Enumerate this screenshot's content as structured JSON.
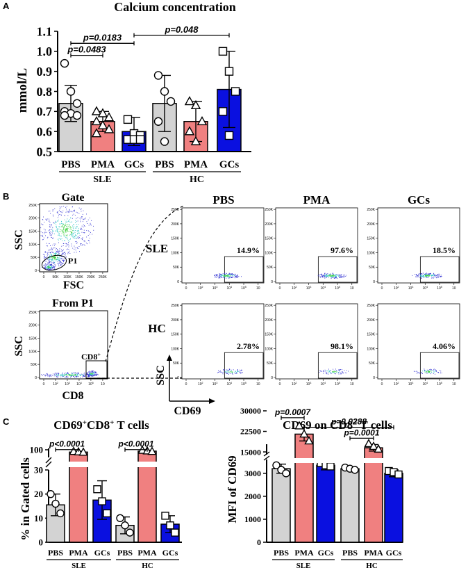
{
  "figure": {
    "panel_labels": [
      "A",
      "B",
      "C"
    ]
  },
  "colors": {
    "pbs": "#d3d3d3",
    "pma": "#f08080",
    "gcs": "#0a10e0",
    "stroke": "#000000",
    "density_low": "#2a2ad0",
    "density_mid": "#20c0c0",
    "density_high": "#40d040"
  },
  "panelB": {
    "gate_title": "Gate",
    "from_title": "From P1",
    "ssc_label": "SSC",
    "fsc_label": "FSC",
    "cd8_label": "CD8",
    "cd69_label": "CD69",
    "p1_label": "P1",
    "cd8_gate_label": "CD8",
    "cd8_gate_sup": "+",
    "col_titles": [
      "PBS",
      "PMA",
      "GCs"
    ],
    "row_titles": [
      "SLE",
      "HC"
    ],
    "percents": [
      [
        "14.9%",
        "97.6%",
        "18.5%"
      ],
      [
        "2.78%",
        "98.1%",
        "4.06%"
      ]
    ],
    "y_ticks_flow": [
      "0",
      "50K",
      "100K",
      "150K",
      "200K",
      "250K"
    ],
    "x_ticks_scatter": [
      "0",
      "50K",
      "100K",
      "150K",
      "200K",
      "250K"
    ],
    "x_ticks_log": [
      "0",
      "10",
      "10",
      "10",
      "10",
      "10"
    ],
    "x_ticks_log_exp": [
      "",
      "2",
      "3",
      "4",
      "5",
      ""
    ]
  },
  "chart_data": [
    {
      "id": "A",
      "type": "bar",
      "title": "Calcium concentration",
      "ylabel": "mmol/L",
      "xlabel": "",
      "ylim": [
        0.5,
        1.1
      ],
      "y_ticks": [
        "0.5",
        "0.6",
        "0.7",
        "0.8",
        "0.9",
        "1.0",
        "1.1"
      ],
      "categories": [
        "PBS",
        "PMA",
        "GCs",
        "PBS",
        "PMA",
        "GCs"
      ],
      "groups": [
        {
          "name": "SLE",
          "span": [
            0,
            2
          ]
        },
        {
          "name": "HC",
          "span": [
            3,
            5
          ]
        }
      ],
      "series": [
        {
          "name": "mean",
          "values": [
            0.74,
            0.65,
            0.6,
            0.74,
            0.65,
            0.81
          ]
        }
      ],
      "errors": [
        0.09,
        0.05,
        0.07,
        0.14,
        0.1,
        0.19
      ],
      "points": [
        [
          0.94,
          0.8,
          0.74,
          0.7,
          0.69,
          0.68,
          0.68
        ],
        [
          0.7,
          0.69,
          0.67,
          0.65,
          0.63,
          0.61,
          0.59
        ],
        [
          0.66,
          0.59,
          0.58,
          0.56,
          0.56,
          0.56
        ],
        [
          0.88,
          0.8,
          0.75,
          0.65,
          0.55
        ],
        [
          0.75,
          0.73,
          0.65,
          0.6,
          0.55
        ],
        [
          1.0,
          0.9,
          0.8,
          0.7,
          0.58
        ]
      ],
      "markers": [
        "circle",
        "triangle",
        "square",
        "circle",
        "triangle",
        "square"
      ],
      "annotations": [
        {
          "label": "p=0.0483",
          "from": 0,
          "to": 1,
          "y": 0.98
        },
        {
          "label": "p=0.0183",
          "from": 0,
          "to": 2,
          "y": 1.04
        },
        {
          "label": "p=0.048",
          "from": 2,
          "to": 5,
          "y": 1.08
        }
      ]
    },
    {
      "id": "C1",
      "type": "bar",
      "title": "CD69",
      "title_sup": "+",
      "title_mid": "CD8",
      "title_sup2": "+",
      "title_end": " T cells",
      "ylabel": "% in Gated cells",
      "xlabel": "",
      "y_ticks": [
        "0",
        "10",
        "20",
        "30",
        "100"
      ],
      "axis_break": "30 to 60",
      "categories": [
        "PBS",
        "PMA",
        "GCs",
        "PBS",
        "PMA",
        "GCs"
      ],
      "groups": [
        {
          "name": "SLE",
          "span": [
            0,
            2
          ]
        },
        {
          "name": "HC",
          "span": [
            3,
            5
          ]
        }
      ],
      "series": [
        {
          "name": "mean",
          "values": [
            15.5,
            88,
            17.5,
            7,
            93,
            7.5
          ]
        }
      ],
      "errors": [
        4.5,
        4,
        8,
        3.5,
        5,
        3.5
      ],
      "points": [
        [
          20,
          16,
          12
        ],
        [
          91,
          89,
          87
        ],
        [
          22,
          17,
          12
        ],
        [
          10,
          7,
          4
        ],
        [
          97,
          94,
          91
        ],
        [
          11,
          7,
          4
        ]
      ],
      "markers": [
        "circle",
        "triangle",
        "square",
        "circle",
        "triangle",
        "square"
      ],
      "annotations": [
        {
          "label": "p<0.0001",
          "from": 0,
          "to": 1,
          "y": 101
        },
        {
          "label": "p<0.0001",
          "from": 3,
          "to": 4,
          "y": 101
        }
      ]
    },
    {
      "id": "C2",
      "type": "bar",
      "title": "CD69 on CD8",
      "title_sup": "+",
      "title_end": " T cells",
      "ylabel": "MFI of CD69",
      "xlabel": "",
      "y_ticks": [
        "0",
        "1000",
        "2000",
        "3000",
        "15000",
        "22500",
        "30000"
      ],
      "axis_break": "3600 to 14000",
      "categories": [
        "PBS",
        "PMA",
        "GCs",
        "PBS",
        "PMA",
        "GCs"
      ],
      "groups": [
        {
          "name": "SLE",
          "span": [
            0,
            2
          ]
        },
        {
          "name": "HC",
          "span": [
            3,
            5
          ]
        }
      ],
      "series": [
        {
          "name": "mean",
          "values": [
            3200,
            21500,
            3350,
            3200,
            16500,
            3000
          ]
        }
      ],
      "errors": [
        200,
        2500,
        200,
        80,
        1200,
        150
      ],
      "points": [
        [
          3350,
          3150,
          3000
        ],
        [
          24500,
          21500,
          19000
        ],
        [
          3450,
          3350,
          3300
        ],
        [
          3250,
          3200,
          3150
        ],
        [
          18000,
          17000,
          16000
        ],
        [
          3100,
          3050,
          2950
        ]
      ],
      "markers": [
        "circle",
        "triangle",
        "square",
        "circle",
        "triangle",
        "square"
      ],
      "annotations": [
        {
          "label": "p=0.0007",
          "from": 0,
          "to": 1,
          "y": 27500
        },
        {
          "label": "p=0.0288",
          "from": 1,
          "to": 5,
          "y": 24000
        },
        {
          "label": "p=0.0001",
          "from": 3,
          "to": 4,
          "y": 20000
        }
      ]
    }
  ]
}
